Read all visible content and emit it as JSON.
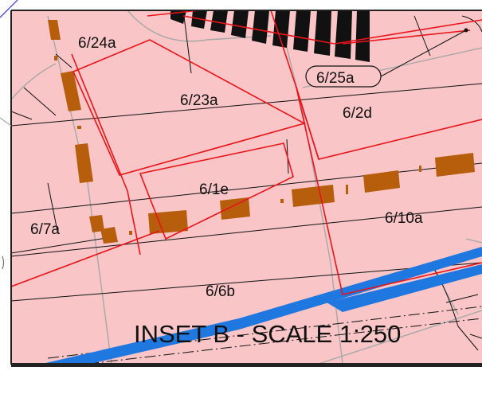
{
  "map": {
    "inset_title": "INSET B - SCALE 1:250",
    "colors": {
      "land_fill": "#f9c5c6",
      "parcel_outline": "#e8141a",
      "road_river": "#1f77e0",
      "building": "#b65e0c",
      "hatched_block": "#111111",
      "frame": "#222222",
      "thin_lines": "#111111",
      "grey_lines": "#a8a8a8"
    },
    "parcels": {
      "p_6_24a": "6/24a",
      "p_6_23a": "6/23a",
      "p_6_25a": "6/25a",
      "p_6_2d": "6/2d",
      "p_6_1e": "6/1e",
      "p_6_7a": "6/7a",
      "p_6_10a": "6/10a",
      "p_6_6b": "6/6b"
    }
  }
}
